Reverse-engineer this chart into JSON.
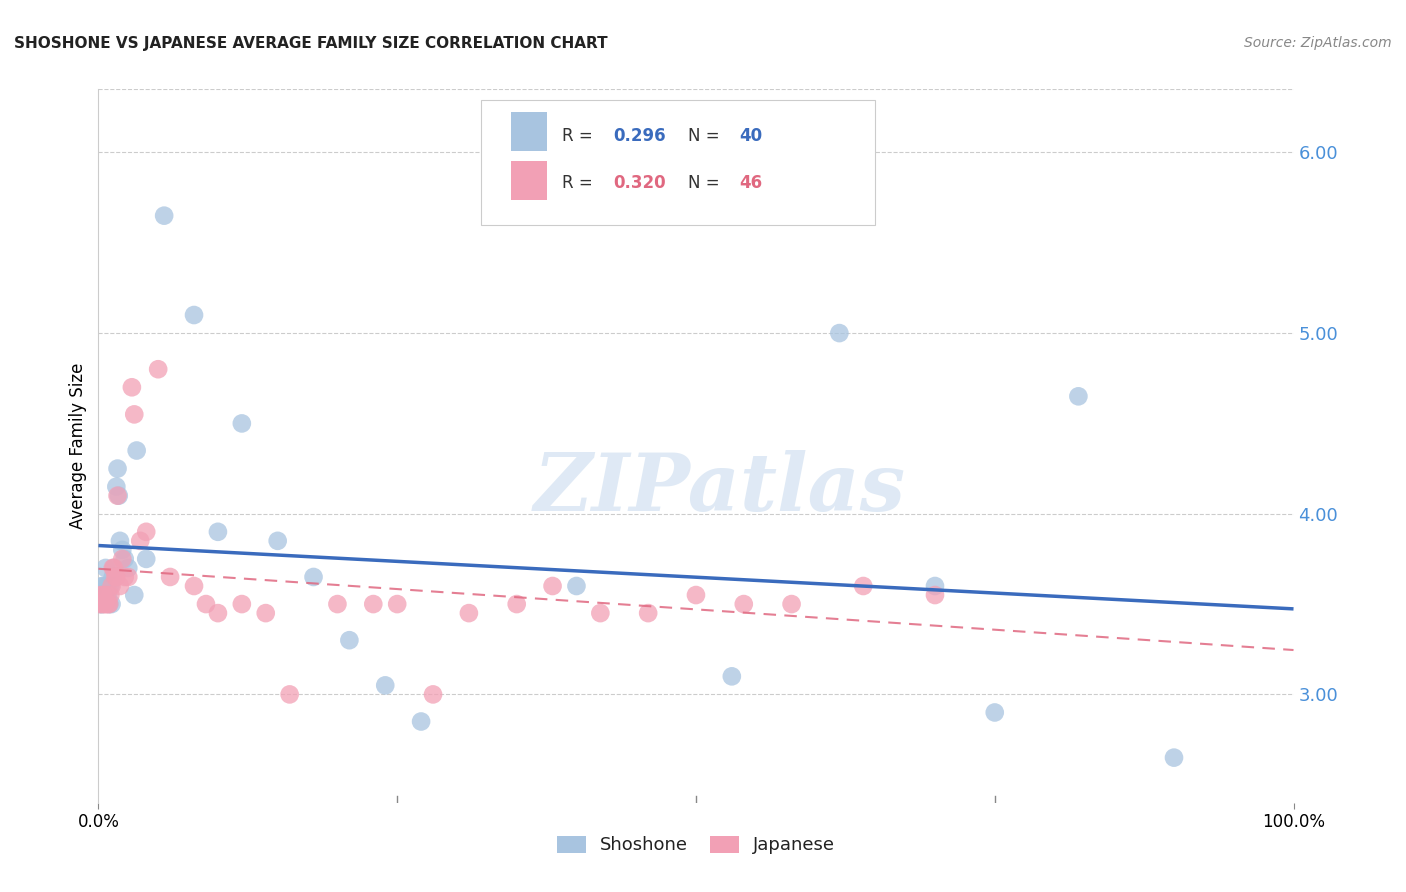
{
  "title": "SHOSHONE VS JAPANESE AVERAGE FAMILY SIZE CORRELATION CHART",
  "source": "Source: ZipAtlas.com",
  "ylabel": "Average Family Size",
  "yticks": [
    3.0,
    4.0,
    5.0,
    6.0
  ],
  "xlim": [
    0.0,
    1.0
  ],
  "ylim": [
    2.4,
    6.35
  ],
  "shoshone_R": 0.296,
  "shoshone_N": 40,
  "japanese_R": 0.32,
  "japanese_N": 46,
  "shoshone_color": "#a8c4e0",
  "japanese_color": "#f2a0b5",
  "shoshone_line_color": "#3a6bbd",
  "japanese_line_color": "#e06880",
  "watermark": "ZIPatlas",
  "shoshone_x": [
    0.001,
    0.002,
    0.003,
    0.003,
    0.004,
    0.005,
    0.006,
    0.007,
    0.008,
    0.009,
    0.01,
    0.011,
    0.012,
    0.013,
    0.015,
    0.016,
    0.017,
    0.018,
    0.02,
    0.022,
    0.025,
    0.03,
    0.032,
    0.04,
    0.055,
    0.08,
    0.1,
    0.12,
    0.15,
    0.18,
    0.21,
    0.24,
    0.27,
    0.4,
    0.53,
    0.62,
    0.7,
    0.75,
    0.82,
    0.9
  ],
  "shoshone_y": [
    3.55,
    3.5,
    3.6,
    3.5,
    3.6,
    3.55,
    3.7,
    3.6,
    3.55,
    3.5,
    3.6,
    3.5,
    3.65,
    3.7,
    4.15,
    4.25,
    4.1,
    3.85,
    3.8,
    3.75,
    3.7,
    3.55,
    4.35,
    3.75,
    5.65,
    5.1,
    3.9,
    4.5,
    3.85,
    3.65,
    3.3,
    3.05,
    2.85,
    3.6,
    3.1,
    5.0,
    3.6,
    2.9,
    4.65,
    2.65
  ],
  "japanese_x": [
    0.001,
    0.002,
    0.003,
    0.004,
    0.005,
    0.006,
    0.007,
    0.008,
    0.009,
    0.01,
    0.011,
    0.012,
    0.013,
    0.014,
    0.015,
    0.016,
    0.018,
    0.02,
    0.022,
    0.025,
    0.028,
    0.03,
    0.035,
    0.04,
    0.05,
    0.06,
    0.08,
    0.09,
    0.1,
    0.12,
    0.14,
    0.16,
    0.2,
    0.23,
    0.25,
    0.28,
    0.31,
    0.35,
    0.38,
    0.42,
    0.46,
    0.5,
    0.54,
    0.58,
    0.64,
    0.7
  ],
  "japanese_y": [
    3.5,
    3.55,
    3.5,
    3.55,
    3.5,
    3.5,
    3.55,
    3.5,
    3.5,
    3.55,
    3.6,
    3.7,
    3.7,
    3.65,
    3.65,
    4.1,
    3.6,
    3.75,
    3.65,
    3.65,
    4.7,
    4.55,
    3.85,
    3.9,
    4.8,
    3.65,
    3.6,
    3.5,
    3.45,
    3.5,
    3.45,
    3.0,
    3.5,
    3.5,
    3.5,
    3.0,
    3.45,
    3.5,
    3.6,
    3.45,
    3.45,
    3.55,
    3.5,
    3.5,
    3.6,
    3.55
  ]
}
